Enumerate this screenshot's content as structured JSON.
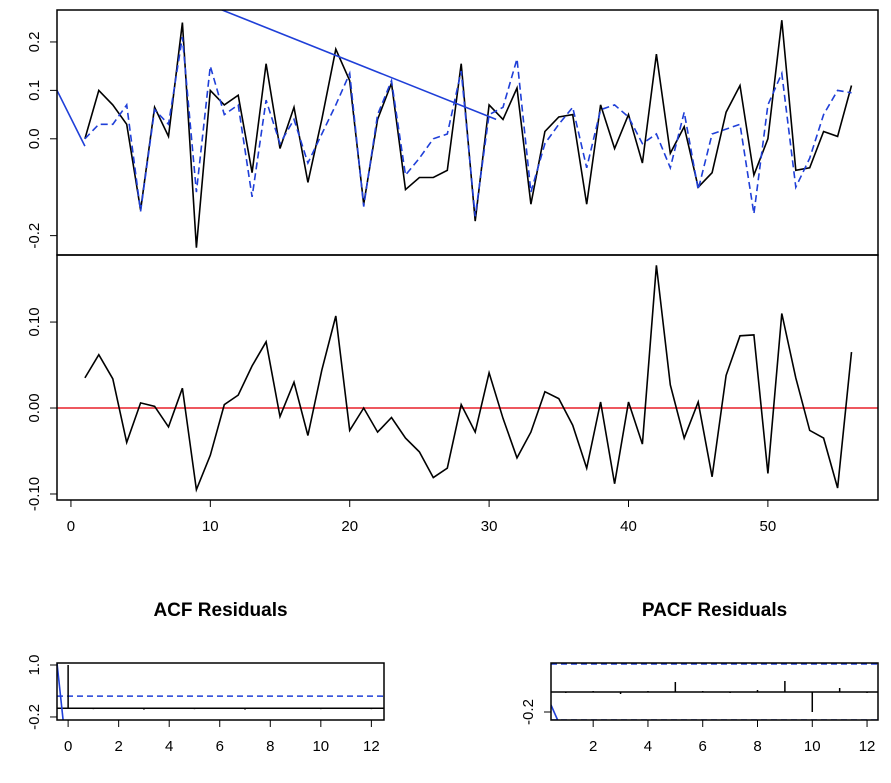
{
  "chart_data": [
    {
      "type": "line",
      "x": [
        1,
        2,
        3,
        4,
        5,
        6,
        7,
        8,
        9,
        10,
        11,
        12,
        13,
        14,
        15,
        16,
        17,
        18,
        19,
        20,
        21,
        22,
        23,
        24,
        25,
        26,
        27,
        28,
        29,
        30,
        31,
        32,
        33,
        34,
        35,
        36,
        37,
        38,
        39,
        40,
        41,
        42,
        43,
        44,
        45,
        46,
        47,
        48,
        49,
        50,
        51,
        52,
        53,
        54,
        55,
        56
      ],
      "xlim": [
        -1,
        57.9
      ],
      "ylim": [
        -0.24,
        0.266
      ],
      "yticks": [
        0.2,
        0.1,
        {
          "value": 0,
          "label": "0.0"
        },
        -0.2
      ],
      "series": [
        {
          "color": "#000000",
          "dash": false,
          "values": [
            0.0,
            0.1,
            0.07,
            0.03,
            -0.147,
            0.065,
            0.005,
            0.24,
            -0.225,
            0.1,
            0.07,
            0.09,
            -0.07,
            0.155,
            -0.02,
            0.065,
            -0.09,
            0.04,
            0.185,
            0.12,
            -0.135,
            0.04,
            0.115,
            -0.105,
            -0.08,
            -0.08,
            -0.065,
            0.155,
            -0.17,
            0.07,
            0.04,
            0.105,
            -0.135,
            0.015,
            0.045,
            0.05,
            -0.135,
            0.07,
            -0.02,
            0.05,
            -0.05,
            0.175,
            -0.03,
            0.025,
            -0.1,
            -0.07,
            0.055,
            0.11,
            -0.075,
            0.0,
            0.245,
            -0.065,
            -0.06,
            0.015,
            0.005,
            0.11
          ]
        },
        {
          "color": "#1f3fd8",
          "dash": true,
          "values": [
            0.0,
            0.03,
            0.03,
            0.07,
            -0.15,
            0.06,
            0.03,
            0.21,
            -0.11,
            0.15,
            0.05,
            0.07,
            -0.12,
            0.08,
            -0.01,
            0.04,
            -0.05,
            0.01,
            0.07,
            0.135,
            -0.14,
            0.05,
            0.12,
            -0.075,
            -0.04,
            0.0,
            0.01,
            0.14,
            -0.16,
            0.05,
            0.065,
            0.165,
            -0.11,
            -0.01,
            0.03,
            0.065,
            -0.06,
            0.06,
            0.07,
            0.045,
            -0.01,
            0.01,
            -0.06,
            0.055,
            -0.105,
            0.01,
            0.02,
            0.03,
            -0.155,
            0.07,
            0.135,
            -0.1,
            -0.04,
            0.05,
            0.1,
            0.095
          ]
        },
        {
          "color": "#1f3fd8",
          "dash": false,
          "x": [
            -1,
            1,
            null,
            10.5,
            30.5
          ],
          "values": [
            0.1,
            -0.015,
            null,
            0.27,
            0.04
          ]
        }
      ]
    },
    {
      "type": "line",
      "x": [
        1,
        2,
        3,
        4,
        5,
        6,
        7,
        8,
        9,
        10,
        11,
        12,
        13,
        14,
        15,
        16,
        17,
        18,
        19,
        20,
        21,
        22,
        23,
        24,
        25,
        26,
        27,
        28,
        29,
        30,
        31,
        32,
        33,
        34,
        35,
        36,
        37,
        38,
        39,
        40,
        41,
        42,
        43,
        44,
        45,
        46,
        47,
        48,
        49,
        50,
        51,
        52,
        53,
        54,
        55,
        56
      ],
      "xlim": [
        -1,
        57.9
      ],
      "ylim": [
        -0.107,
        0.178
      ],
      "xticks": [
        0,
        10,
        20,
        30,
        40,
        50
      ],
      "yticks": [
        {
          "value": 0.1,
          "label": "0.10"
        },
        {
          "value": 0,
          "label": "0.00"
        },
        {
          "value": -0.1,
          "label": "-0.10"
        }
      ],
      "hline": 0,
      "hline_color": "#e8202a",
      "series": [
        {
          "color": "#000000",
          "dash": false,
          "values": [
            0.035,
            0.062,
            0.034,
            -0.04,
            0.006,
            0.002,
            -0.022,
            0.023,
            -0.095,
            -0.055,
            0.004,
            0.015,
            0.049,
            0.077,
            -0.01,
            0.03,
            -0.032,
            0.044,
            0.107,
            -0.026,
            0.0,
            -0.028,
            -0.011,
            -0.035,
            -0.051,
            -0.081,
            -0.07,
            0.004,
            -0.028,
            0.041,
            -0.012,
            -0.058,
            -0.028,
            0.019,
            0.011,
            -0.02,
            -0.07,
            0.007,
            -0.088,
            0.007,
            -0.042,
            0.166,
            0.027,
            -0.035,
            0.007,
            -0.08,
            0.038,
            0.084,
            0.085,
            -0.076,
            0.11,
            0.035,
            -0.026,
            -0.035,
            -0.093,
            0.065
          ]
        }
      ]
    },
    {
      "type": "spike",
      "title": "ACF Residuals",
      "lags": [
        0,
        1,
        2,
        3,
        4,
        5,
        6,
        7,
        8,
        9,
        10,
        11,
        12
      ],
      "values": [
        1.0,
        -0.02,
        0.01,
        -0.03,
        -0.01,
        -0.02,
        0.01,
        -0.03,
        -0.01,
        0.01,
        -0.02,
        -0.01,
        -0.02
      ],
      "xlim": [
        -0.44,
        12.5
      ],
      "ylim": [
        -0.27,
        1.046
      ],
      "xticks": [
        0,
        2,
        4,
        6,
        8,
        10,
        12
      ],
      "yticks": [
        {
          "value": 1,
          "label": "1.0"
        },
        -0.2
      ],
      "hline": 0,
      "hline_color": "#000000",
      "bound": 0.28,
      "bound_color": "#1f3fd8",
      "series": [
        {
          "color": "#1f3fd8",
          "dash": false,
          "x": [
            -0.44,
            -0.2
          ],
          "values": [
            1.046,
            -0.27
          ]
        }
      ]
    },
    {
      "type": "spike",
      "title": "PACF Residuals",
      "lags": [
        1,
        2,
        3,
        4,
        5,
        6,
        7,
        8,
        9,
        10,
        11,
        12
      ],
      "values": [
        -0.01,
        0.01,
        -0.02,
        0.01,
        0.1,
        0.01,
        -0.01,
        0.02,
        0.11,
        -0.2,
        0.04,
        -0.01
      ],
      "xlim": [
        0.46,
        12.4
      ],
      "ylim": [
        -0.28,
        0.29
      ],
      "xticks": [
        2,
        4,
        6,
        8,
        10,
        12
      ],
      "yticks": [
        -0.2
      ],
      "hline": 0,
      "hline_color": "#000000",
      "bound": 0.28,
      "bound_color": "#1f3fd8",
      "series": [
        {
          "color": "#1f3fd8",
          "dash": false,
          "x": [
            0.46,
            0.7
          ],
          "values": [
            -0.13,
            -0.28
          ]
        }
      ]
    }
  ]
}
